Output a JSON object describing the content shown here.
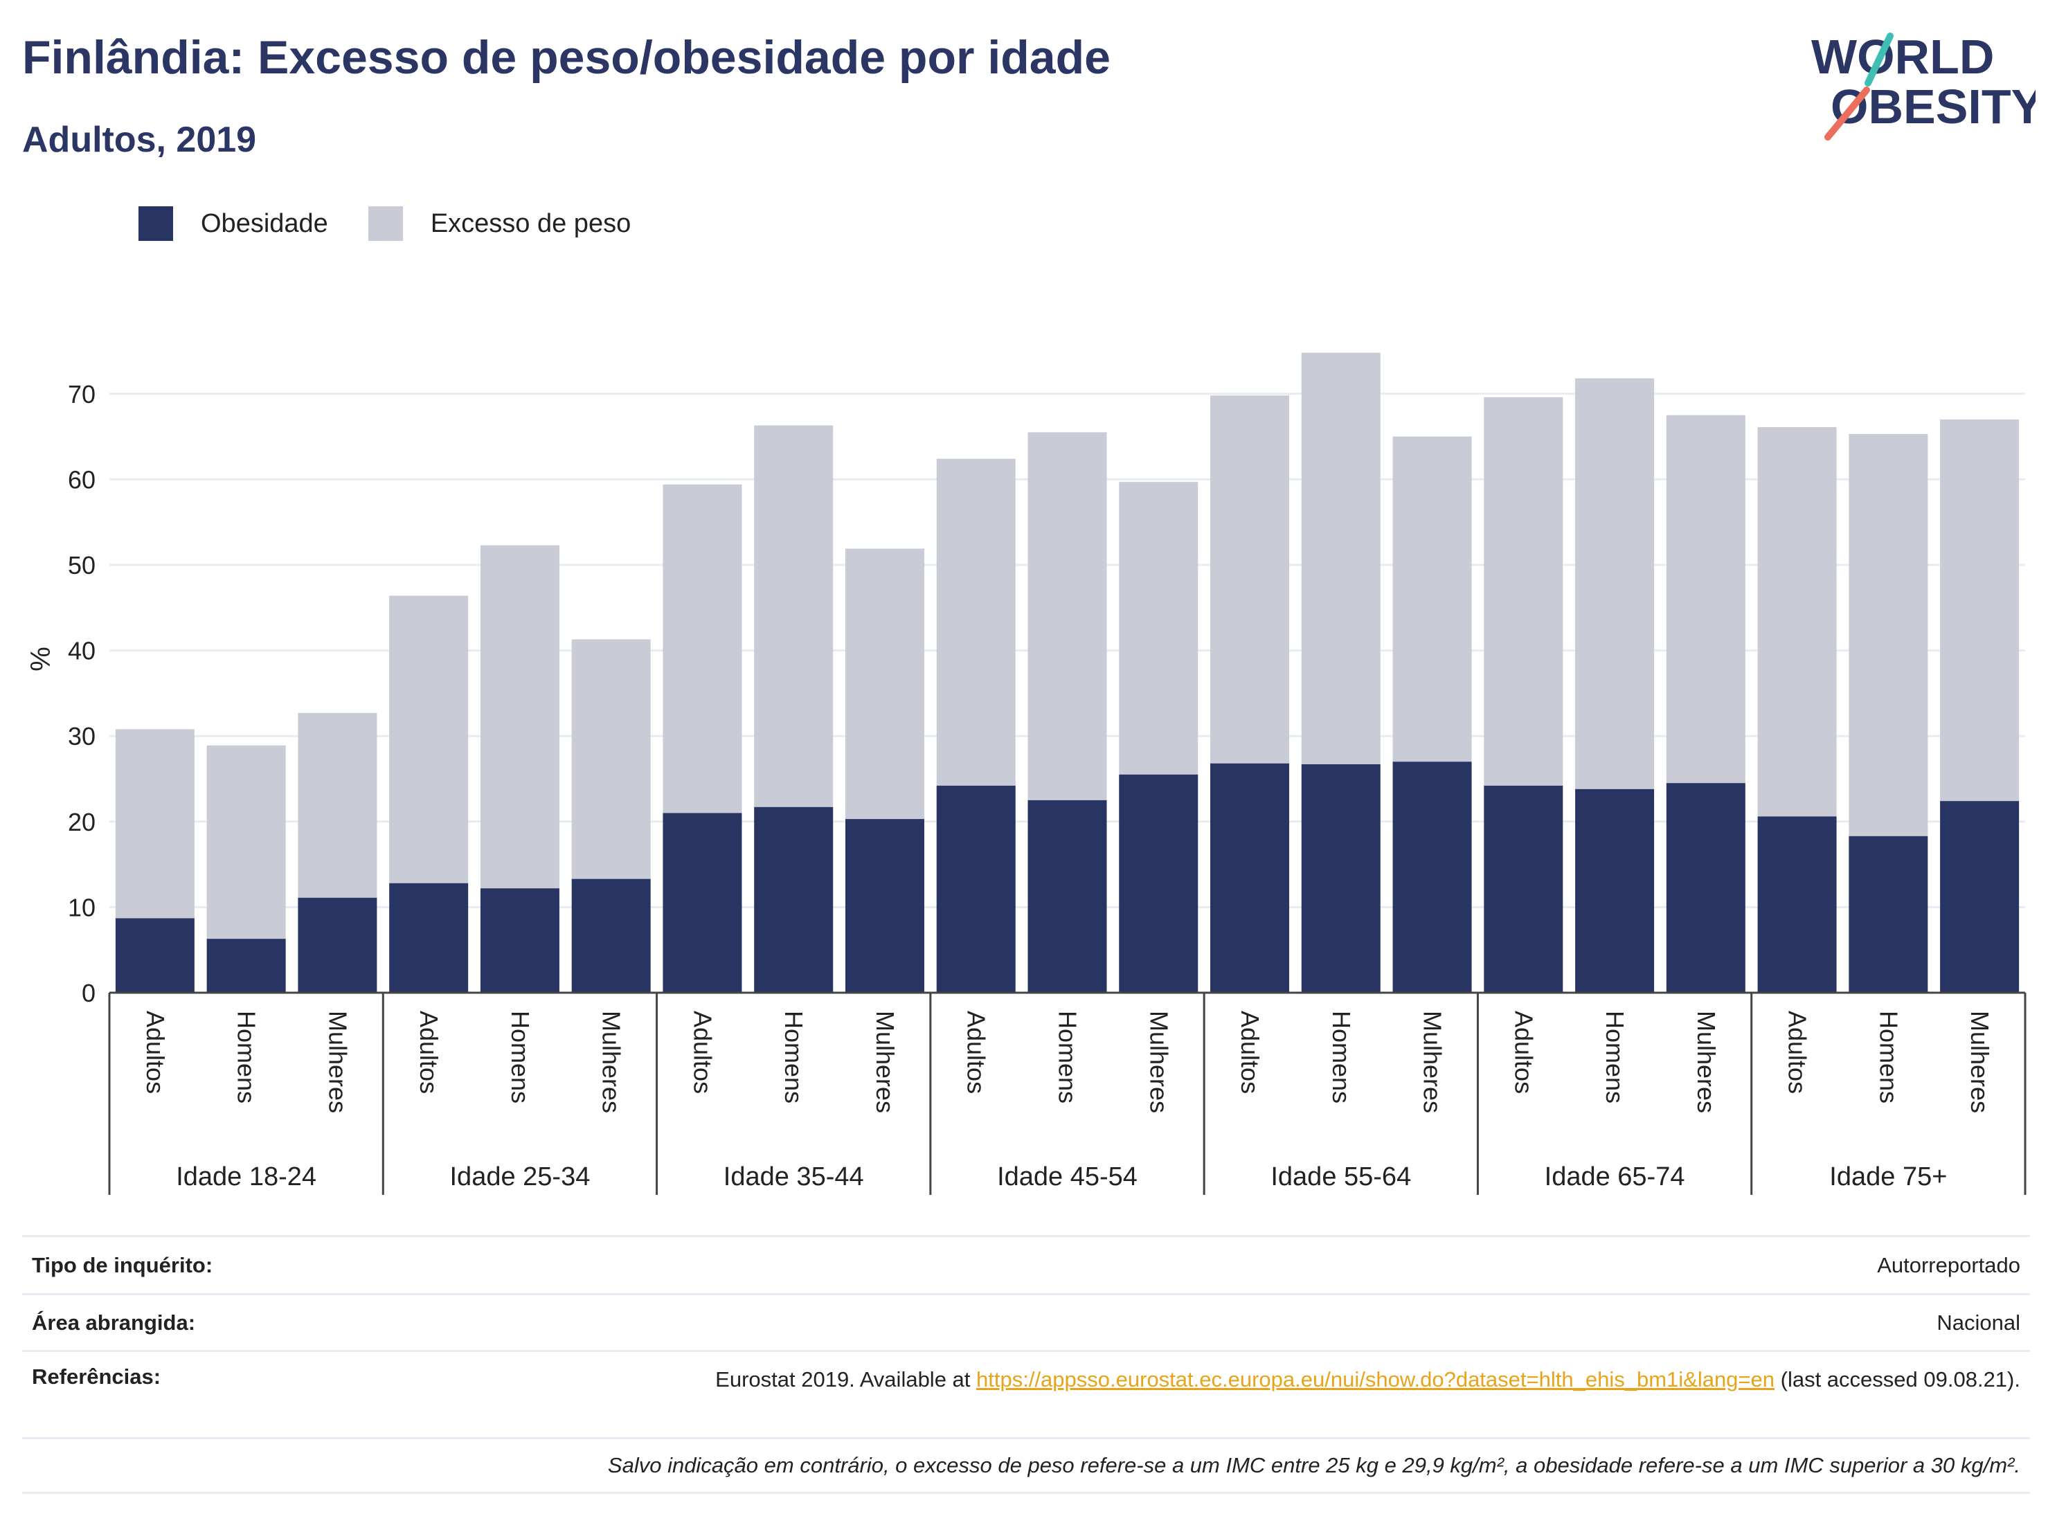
{
  "header": {
    "title": "Finlândia: Excesso de peso/obesidade por idade",
    "subtitle": "Adultos, 2019"
  },
  "logo": {
    "line1": "WORLD",
    "line2": "OBESITY"
  },
  "colors": {
    "obesity": "#283562",
    "overweight": "#c9cbd6",
    "grid": "#e8ebf1",
    "axis": "#444444",
    "title": "#2b3664",
    "link": "#e8a419"
  },
  "legend": {
    "obesity_label": "Obesidade",
    "overweight_label": "Excesso de peso"
  },
  "chart_data": {
    "type": "bar",
    "stacked": true,
    "ylabel": "%",
    "ylim": [
      0,
      78
    ],
    "yticks": [
      0,
      10,
      20,
      30,
      40,
      50,
      60,
      70
    ],
    "grid": true,
    "legend_position": "top-left",
    "groups": [
      {
        "label": "Idade 18-24",
        "categories": [
          "Adultos",
          "Homens",
          "Mulheres"
        ],
        "obesity": [
          8.7,
          6.3,
          11.1
        ],
        "overweight_total": [
          30.8,
          28.9,
          32.7
        ]
      },
      {
        "label": "Idade 25-34",
        "categories": [
          "Adultos",
          "Homens",
          "Mulheres"
        ],
        "obesity": [
          12.8,
          12.2,
          13.3
        ],
        "overweight_total": [
          46.4,
          52.3,
          41.3
        ]
      },
      {
        "label": "Idade 35-44",
        "categories": [
          "Adultos",
          "Homens",
          "Mulheres"
        ],
        "obesity": [
          21.0,
          21.7,
          20.3
        ],
        "overweight_total": [
          59.4,
          66.3,
          51.9
        ]
      },
      {
        "label": "Idade 45-54",
        "categories": [
          "Adultos",
          "Homens",
          "Mulheres"
        ],
        "obesity": [
          24.2,
          22.5,
          25.5
        ],
        "overweight_total": [
          62.4,
          65.5,
          59.7
        ]
      },
      {
        "label": "Idade 55-64",
        "categories": [
          "Adultos",
          "Homens",
          "Mulheres"
        ],
        "obesity": [
          26.8,
          26.7,
          27.0
        ],
        "overweight_total": [
          69.8,
          74.8,
          65.0
        ]
      },
      {
        "label": "Idade 65-74",
        "categories": [
          "Adultos",
          "Homens",
          "Mulheres"
        ],
        "obesity": [
          24.2,
          23.8,
          24.5
        ],
        "overweight_total": [
          69.6,
          71.8,
          67.5
        ]
      },
      {
        "label": "Idade 75+",
        "categories": [
          "Adultos",
          "Homens",
          "Mulheres"
        ],
        "obesity": [
          20.6,
          18.3,
          22.4
        ],
        "overweight_total": [
          66.1,
          65.3,
          67.0
        ]
      }
    ]
  },
  "meta": {
    "survey_key": "Tipo de inquérito:",
    "survey_val": "Autorreportado",
    "area_key": "Área abrangida:",
    "area_val": "Nacional",
    "refs_key": "Referências:",
    "refs_pre": "Eurostat 2019. Available at ",
    "refs_link": "https://appsso.eurostat.ec.europa.eu/nui/show.do?dataset=hlth_ehis_bm1i&lang=en",
    "refs_post": " (last accessed 09.08.21).",
    "note": "Salvo indicação em contrário, o excesso de peso refere-se a um IMC entre 25 kg e 29,9 kg/m², a obesidade refere-se a um IMC superior a 30 kg/m²."
  }
}
